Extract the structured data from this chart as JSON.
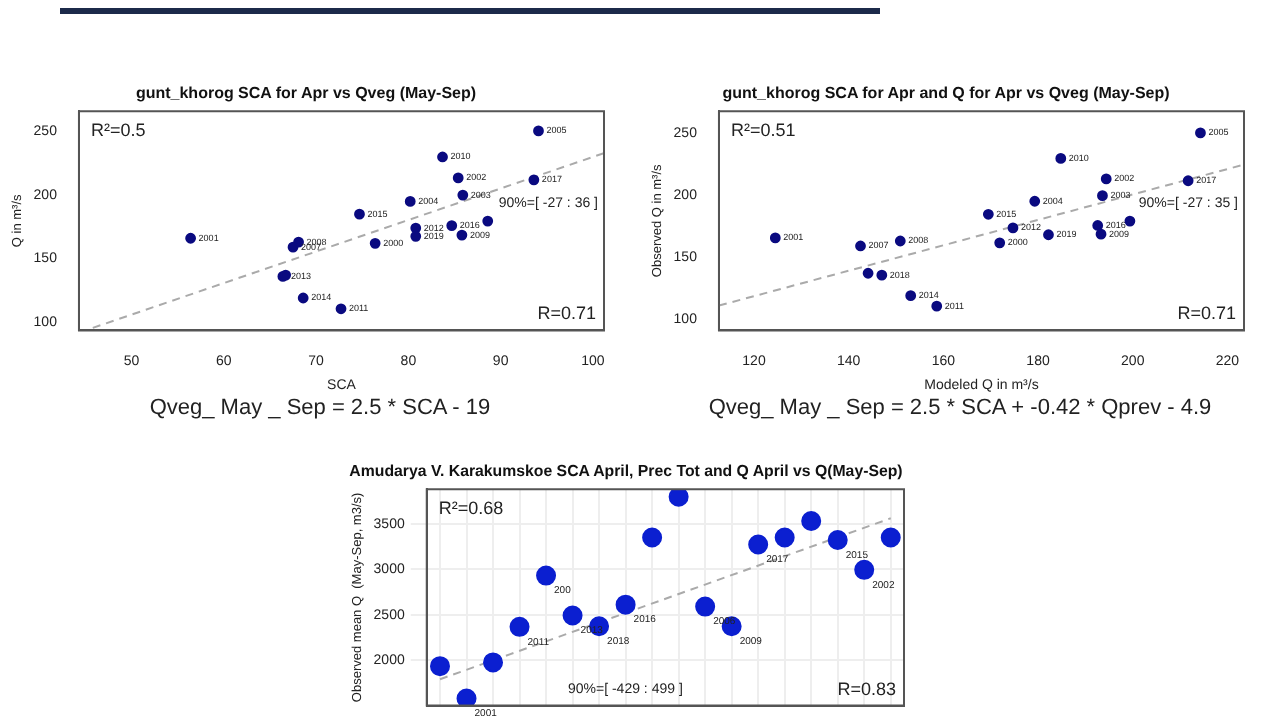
{
  "chart_data": [
    {
      "type": "scatter",
      "title": "gunt_khorog SCA for Apr vs Qveg (May-Sep)",
      "xlabel": "SCA",
      "ylabel": "Q in m³/s",
      "xlim": [
        44.3,
        101.2
      ],
      "ylim": [
        93.5,
        266
      ],
      "xticks": [
        50,
        60,
        70,
        80,
        90,
        100
      ],
      "yticks": [
        100,
        150,
        200,
        250
      ],
      "grid": false,
      "legend": false,
      "marker": "circle",
      "series": [
        {
          "type": "scatter",
          "color": "#0a0a80",
          "x": [
            94.1,
            83.7,
            85.4,
            93.6,
            85.9,
            80.2,
            74.7,
            80.8,
            84.7,
            88.6,
            80.8,
            85.8,
            76.4,
            56.4,
            68.1,
            67.5,
            66.4,
            66.7,
            68.6,
            72.7
          ],
          "values": [
            250.5,
            230,
            213.5,
            212,
            200,
            195,
            185,
            174,
            176,
            179.5,
            167.5,
            168.5,
            162,
            166,
            163,
            159,
            136,
            137,
            119,
            110.5
          ]
        },
        {
          "type": "line",
          "color": "#aaaaaa",
          "line_style": "dashed",
          "marker": "none",
          "x": [
            45.8,
            101.2
          ],
          "values": [
            95.5,
            233
          ]
        }
      ],
      "annotations": [
        "R²=0.5",
        "R=0.71",
        "90%=[ -27 : 36 ]",
        "Qveg_ May _ Sep  =  2.5 * SCA - 19",
        {
          "text": "2005",
          "x": 94.1,
          "y": 250.5
        },
        {
          "text": "2010",
          "x": 83.7,
          "y": 230
        },
        {
          "text": "2002",
          "x": 85.4,
          "y": 213.5
        },
        {
          "text": "2017",
          "x": 93.6,
          "y": 212
        },
        {
          "text": "2003",
          "x": 85.9,
          "y": 200
        },
        {
          "text": "2004",
          "x": 80.2,
          "y": 195
        },
        {
          "text": "2015",
          "x": 74.7,
          "y": 185
        },
        {
          "text": "2012",
          "x": 80.8,
          "y": 174
        },
        {
          "text": "2016",
          "x": 84.7,
          "y": 176
        },
        {
          "text": "2019",
          "x": 80.8,
          "y": 167.5
        },
        {
          "text": "2009",
          "x": 85.8,
          "y": 168.5
        },
        {
          "text": "2000",
          "x": 76.4,
          "y": 162
        },
        {
          "text": "2001",
          "x": 56.4,
          "y": 166
        },
        {
          "text": "2008",
          "x": 68.1,
          "y": 163
        },
        {
          "text": "2007",
          "x": 67.5,
          "y": 159
        },
        {
          "text": "2013",
          "x": 66.4,
          "y": 136
        },
        {
          "text": "2014",
          "x": 68.6,
          "y": 119
        },
        {
          "text": "2011",
          "x": 72.7,
          "y": 110.5
        }
      ]
    },
    {
      "type": "scatter",
      "title": "gunt_khorog SCA for Apr and Q for Apr vs Qveg (May-Sep)",
      "xlabel": "Modeled Q in m³/s",
      "ylabel": "Observed Q in m³/s",
      "xlim": [
        112.6,
        223.5
      ],
      "ylim": [
        91,
        267.5
      ],
      "xticks": [
        120,
        140,
        160,
        180,
        200,
        220
      ],
      "yticks": [
        100,
        150,
        200,
        250
      ],
      "grid": false,
      "legend": false,
      "marker": "circle",
      "series": [
        {
          "type": "scatter",
          "color": "#0a0a80",
          "x": [
            214.3,
            184.8,
            194.4,
            211.7,
            193.6,
            179.3,
            169.5,
            174.7,
            192.6,
            199.4,
            182.2,
            193.3,
            171.9,
            124.5,
            150.9,
            142.5,
            144.1,
            147,
            153.1,
            158.6
          ],
          "values": [
            250,
            229.5,
            213,
            211.5,
            199.5,
            195,
            184.5,
            173.5,
            175.5,
            179,
            168,
            168.5,
            161.5,
            165.5,
            163,
            159,
            137,
            135.5,
            119,
            110.5
          ]
        },
        {
          "type": "line",
          "color": "#aaaaaa",
          "line_style": "dashed",
          "marker": "none",
          "x": [
            112.6,
            223.5
          ],
          "values": [
            111,
            224.5
          ]
        }
      ],
      "annotations": [
        "R²=0.51",
        "R=0.71",
        "90%=[ -27 : 35 ]",
        "Qveg_ May _ Sep  =  2.5 * SCA + -0.42 * Qprev - 4.9",
        {
          "text": "2005",
          "x": 214.3,
          "y": 250
        },
        {
          "text": "2010",
          "x": 184.8,
          "y": 229.5
        },
        {
          "text": "2002",
          "x": 194.4,
          "y": 213
        },
        {
          "text": "2017",
          "x": 211.7,
          "y": 211.5
        },
        {
          "text": "2003",
          "x": 193.6,
          "y": 199.5
        },
        {
          "text": "2004",
          "x": 179.3,
          "y": 195
        },
        {
          "text": "2015",
          "x": 169.5,
          "y": 184.5
        },
        {
          "text": "2012",
          "x": 174.7,
          "y": 173.5
        },
        {
          "text": "2016",
          "x": 192.6,
          "y": 175.5
        },
        {
          "text": "2019",
          "x": 182.2,
          "y": 168
        },
        {
          "text": "2009",
          "x": 193.3,
          "y": 168.5
        },
        {
          "text": "2000",
          "x": 171.9,
          "y": 161.5
        },
        {
          "text": "2001",
          "x": 124.5,
          "y": 165.5
        },
        {
          "text": "2008",
          "x": 150.9,
          "y": 163
        },
        {
          "text": "2007",
          "x": 142.5,
          "y": 159
        },
        {
          "text": "2018",
          "x": 147,
          "y": 135.5
        },
        {
          "text": "2014",
          "x": 153.1,
          "y": 119
        },
        {
          "text": "2011",
          "x": 158.6,
          "y": 110.5
        }
      ]
    },
    {
      "type": "scatter",
      "title": "Amudarya V. Karakumskoe SCA April, Prec Tot and Q April vs Q(May-Sep)",
      "ylabel": "Observed mean Q  (May-Sep, m3/s)",
      "categories": [
        null,
        null,
        null,
        null,
        null,
        null,
        null,
        null,
        null,
        null,
        null,
        null,
        null,
        null,
        null,
        null,
        null,
        null
      ],
      "ylim": [
        1500,
        3880
      ],
      "yticks": [
        2000,
        2500,
        3000,
        3500
      ],
      "tick_labels": "y",
      "grid": true,
      "legend": false,
      "marker": "circle",
      "series": [
        {
          "type": "scatter",
          "color": "#0b1fd0",
          "values": [
            1934,
            1578,
            1975,
            2366,
            2930,
            2491,
            2373,
            2610,
            3349,
            3797,
            2589,
            2373,
            3272,
            3349,
            3530,
            3321,
            2993,
            3349
          ]
        },
        {
          "type": "line",
          "color": "#aaaaaa",
          "line_style": "dashed",
          "marker": "none",
          "values": [
            1790,
            null,
            null,
            null,
            null,
            null,
            null,
            null,
            null,
            null,
            null,
            null,
            null,
            null,
            null,
            null,
            null,
            3560
          ]
        }
      ],
      "annotations": [
        "R²=0.68",
        "R=0.83",
        "90%=[ -429 : 499 ]",
        "2001",
        "2011",
        "200",
        "2013",
        "2018",
        "2016",
        "2006",
        "2009",
        "2017",
        "2015",
        "2002"
      ]
    }
  ]
}
